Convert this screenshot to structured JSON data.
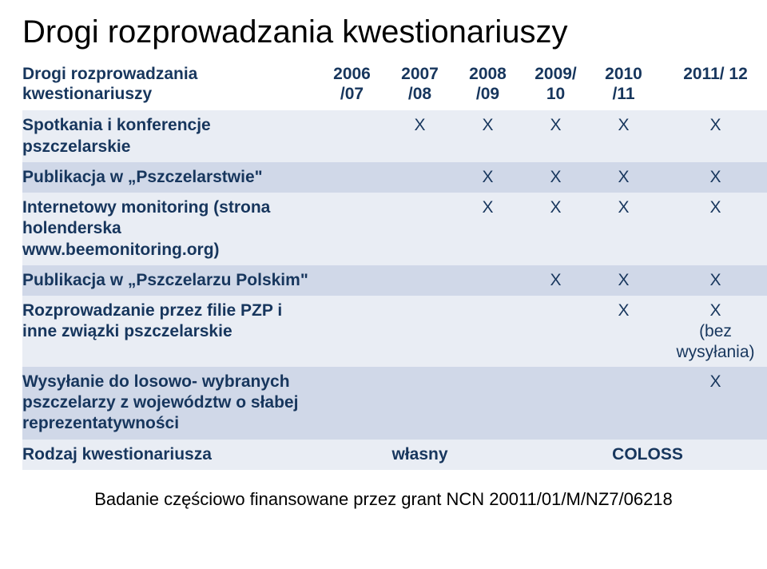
{
  "title": "Drogi rozprowadzania kwestionariuszy",
  "columns": {
    "lead": "Drogi rozprowadzania kwestionariuszy",
    "c1": "2006 /07",
    "c2": "2007 /08",
    "c3": "2008 /09",
    "c4": "2009/ 10",
    "c5": "2010 /11",
    "c6": "2011/ 12"
  },
  "rows": [
    {
      "label": "Spotkania i konferencje pszczelarskie",
      "cells": [
        "",
        "X",
        "X",
        "X",
        "X",
        "X"
      ],
      "band": 1
    },
    {
      "label": "Publikacja w „Pszczelarstwie\"",
      "cells": [
        "",
        "",
        "X",
        "X",
        "X",
        "X"
      ],
      "band": 2
    },
    {
      "label": "Internetowy monitoring (strona holenderska www.beemonitoring.org)",
      "cells": [
        "",
        "",
        "X",
        "X",
        "X",
        "X"
      ],
      "band": 1
    },
    {
      "label": "Publikacja w „Pszczelarzu Polskim\"",
      "cells": [
        "",
        "",
        "",
        "X",
        "X",
        "X"
      ],
      "band": 2
    },
    {
      "label": "Rozprowadzanie przez filie PZP i inne związki pszczelarskie",
      "cells": [
        "",
        "",
        "",
        "",
        "X",
        "X"
      ],
      "extras": "(bez wysyłania)",
      "band": 1
    },
    {
      "label": "Wysyłanie do losowo- wybranych pszczelarzy z województw o słabej reprezentatywności",
      "cells": [
        "",
        "",
        "",
        "",
        "",
        "X"
      ],
      "band": 2
    }
  ],
  "footer": {
    "label": "Rodzaj kwestionariusza",
    "val1": "własny",
    "val2": "COLOSS"
  },
  "grant": "Badanie częściowo finansowane przez grant NCN 20011/01/M/NZ7/06218",
  "colors": {
    "text_primary": "#17365d",
    "band1": "#e9edf4",
    "band2": "#d0d8e8",
    "background": "#ffffff"
  },
  "typography": {
    "title_fontsize": 40,
    "header_fontsize": 21,
    "cell_fontsize": 21,
    "grant_fontsize": 22,
    "font_family": "Arial"
  }
}
